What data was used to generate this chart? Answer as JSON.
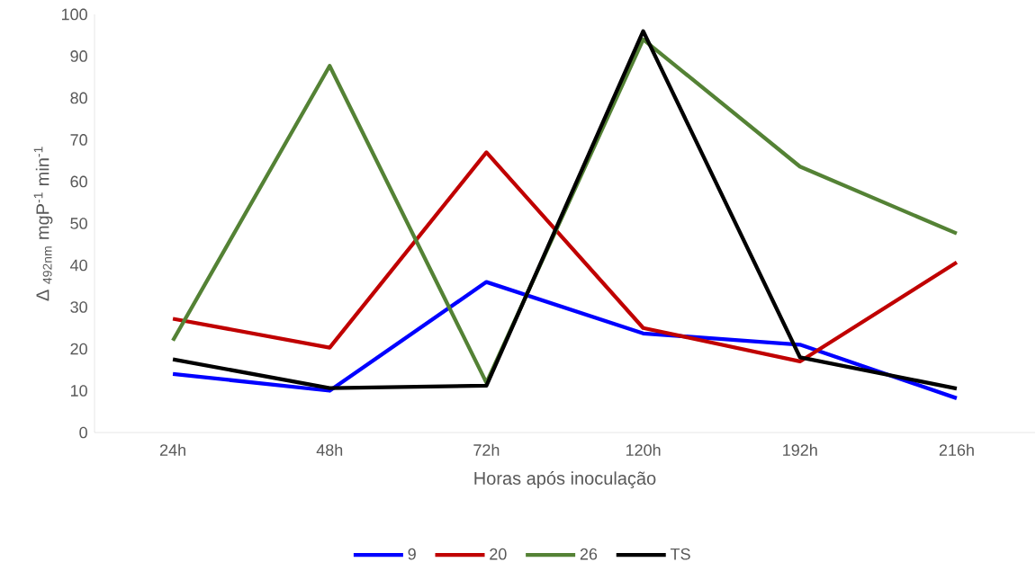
{
  "chart_data": {
    "type": "line",
    "xlabel": "Horas após inoculação",
    "ylabel": "Δ $_{492nm}$ mgP$^{-1}$ min$^{-1}$",
    "categories": [
      "24h",
      "48h",
      "72h",
      "120h",
      "192h",
      "216h"
    ],
    "series": [
      {
        "name": "9",
        "color": "#0000ff",
        "values": [
          14,
          10,
          36,
          23.7,
          21,
          8.2
        ]
      },
      {
        "name": "20",
        "color": "#c00000",
        "values": [
          27.2,
          20.3,
          67,
          25,
          17,
          40.7
        ]
      },
      {
        "name": "26",
        "color": "#548235",
        "values": [
          22,
          87.7,
          11.9,
          94,
          63.6,
          47.6
        ]
      },
      {
        "name": "TS",
        "color": "#000000",
        "values": [
          17.5,
          10.6,
          11.2,
          96,
          18,
          10.5
        ]
      }
    ],
    "ylim": [
      0,
      100
    ],
    "yticks": [
      0,
      10,
      20,
      30,
      40,
      50,
      60,
      70,
      80,
      90,
      100
    ],
    "legend": "bottom",
    "marker": "none"
  }
}
